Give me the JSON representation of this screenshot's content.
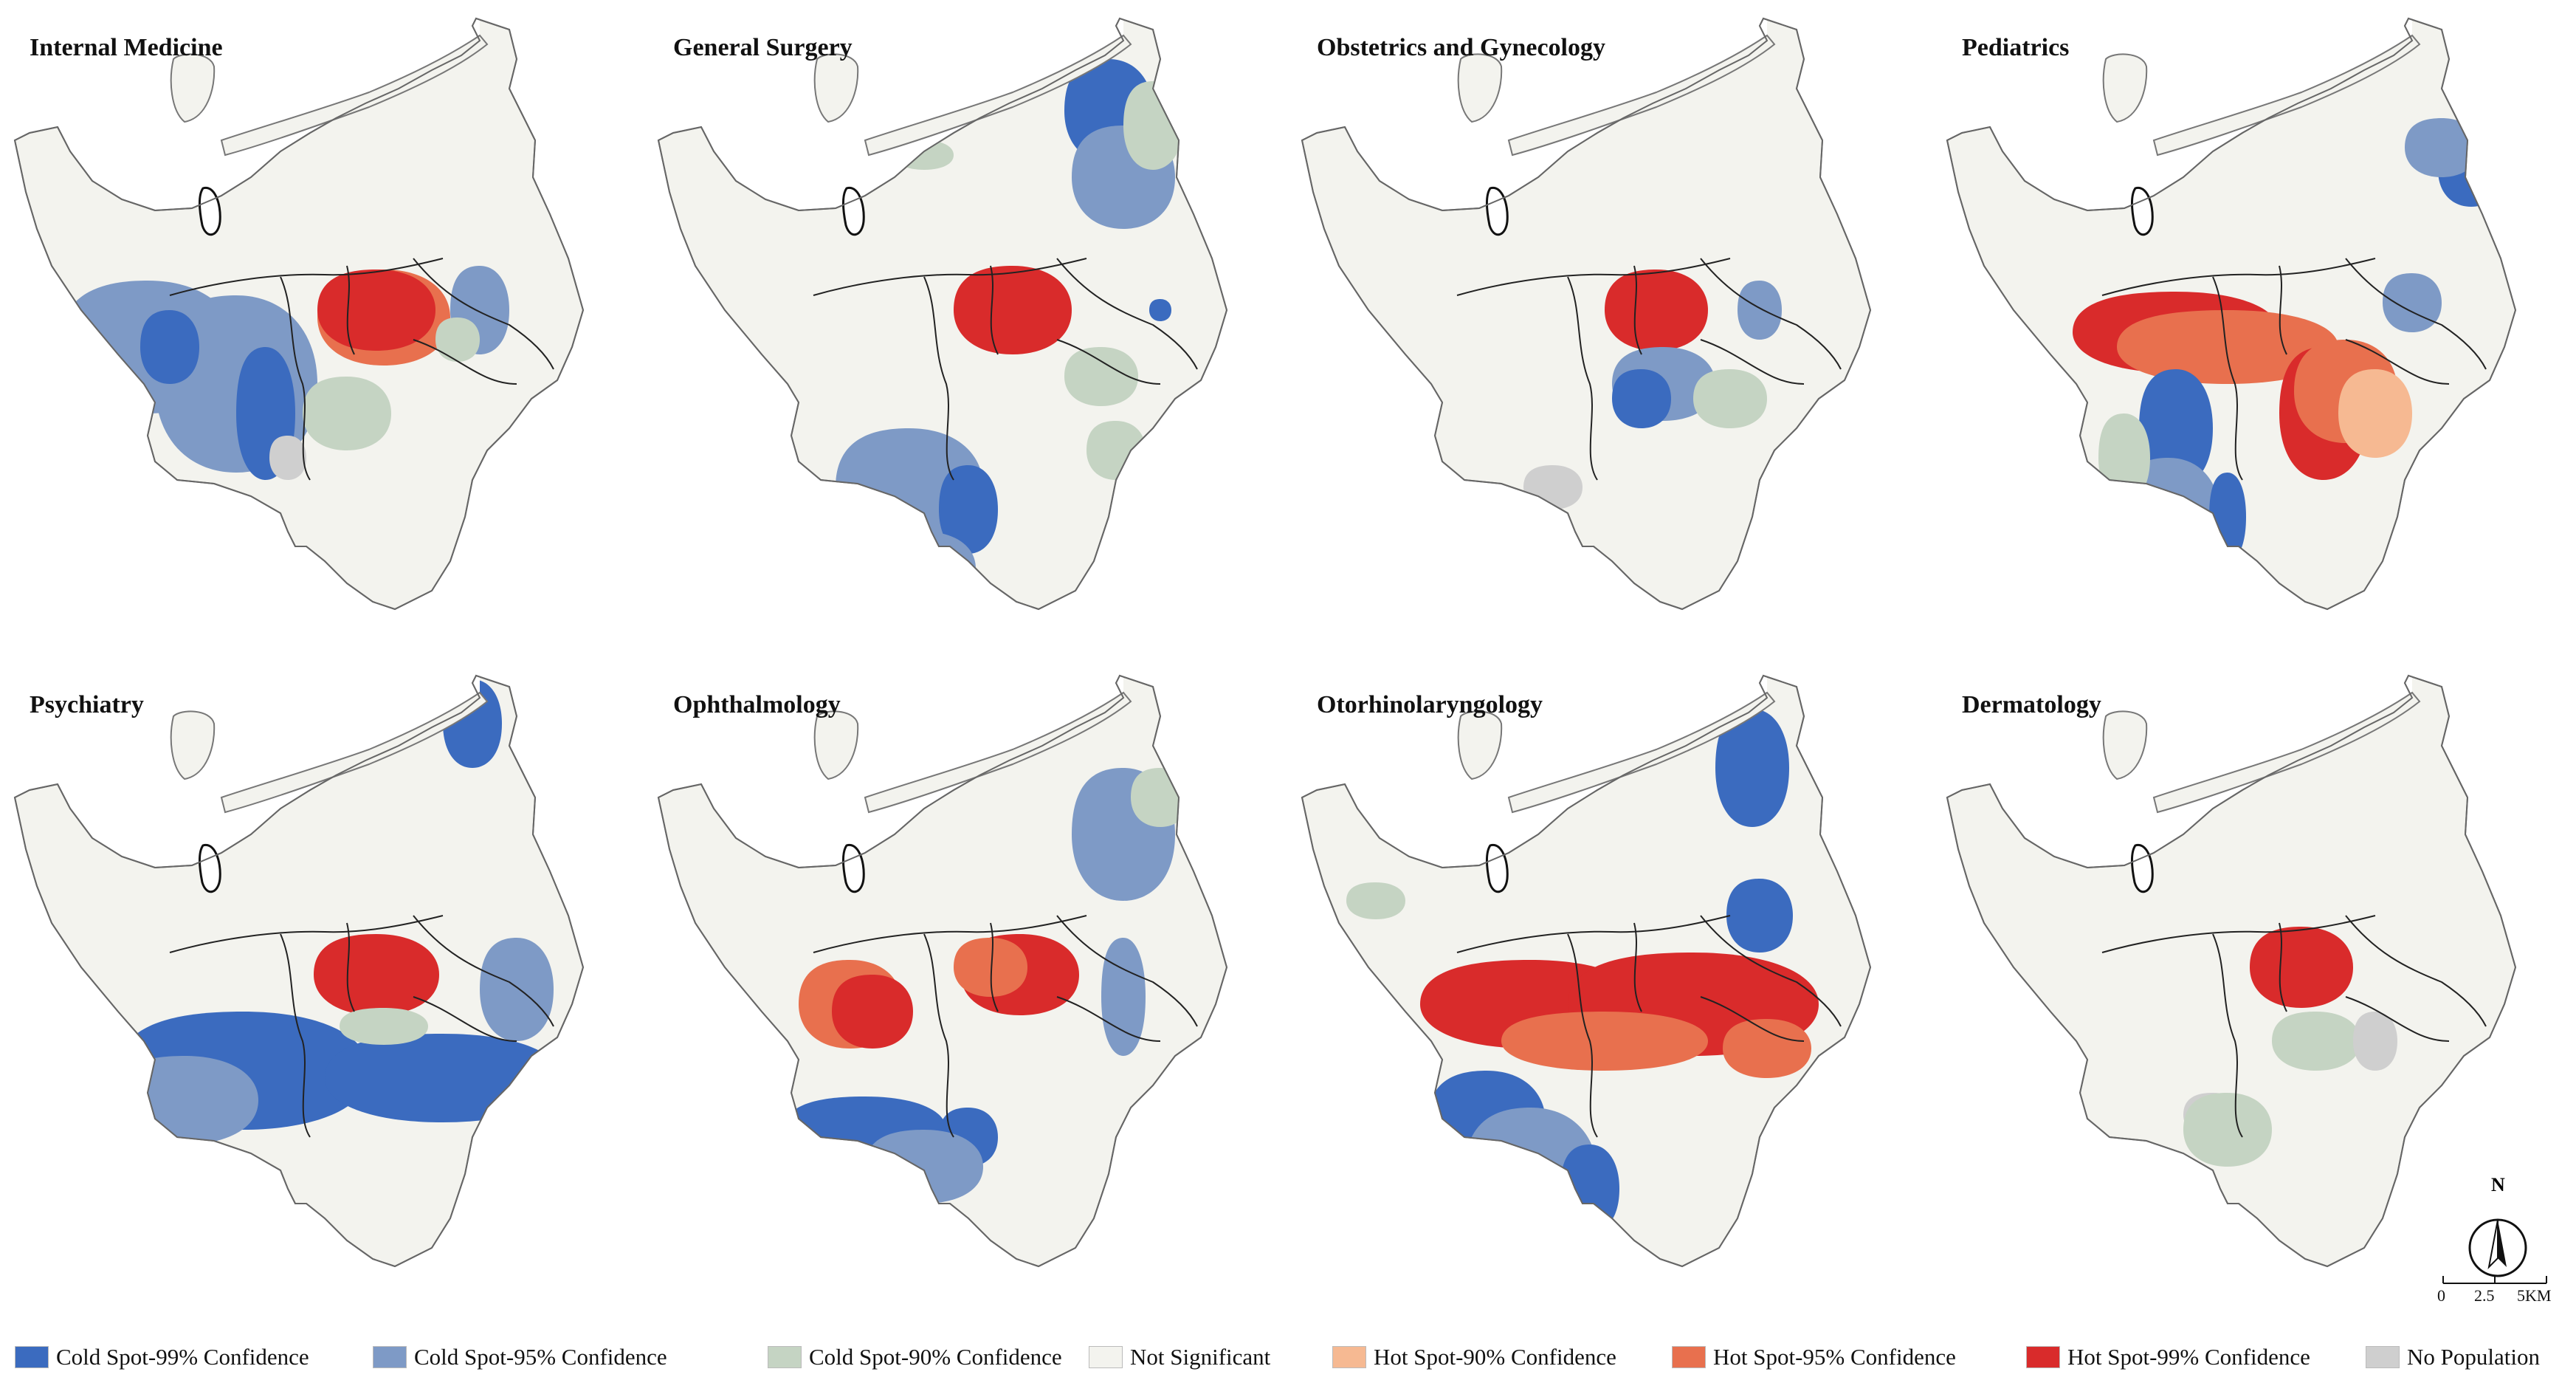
{
  "figure": {
    "panels": [
      {
        "title": "Internal Medicine",
        "pattern": "im"
      },
      {
        "title": "General Surgery",
        "pattern": "gs"
      },
      {
        "title": "Obstetrics and Gynecology",
        "pattern": "og"
      },
      {
        "title": "Pediatrics",
        "pattern": "pd"
      },
      {
        "title": "Psychiatry",
        "pattern": "ps"
      },
      {
        "title": "Ophthalmology",
        "pattern": "op"
      },
      {
        "title": "Otorhinolaryngology",
        "pattern": "ot"
      },
      {
        "title": "Dermatology",
        "pattern": "dm"
      }
    ],
    "north_label": "N",
    "scale": {
      "ticks": [
        "0",
        "2.5",
        "5KM"
      ]
    },
    "legend": [
      {
        "label": "Cold Spot-99% Confidence",
        "color": "#3b6bbf"
      },
      {
        "label": "Cold Spot-95% Confidence",
        "color": "#7e9ac6"
      },
      {
        "label": "Cold Spot-90% Confidence",
        "color": "#c5d4c3"
      },
      {
        "label": "Not Significant",
        "color": "#f3f3ee"
      },
      {
        "label": "Hot Spot-90% Confidence",
        "color": "#f6b992"
      },
      {
        "label": "Hot Spot-95% Confidence",
        "color": "#e8704e"
      },
      {
        "label": "Hot Spot-99% Confidence",
        "color": "#d92b2b"
      },
      {
        "label": "No Population",
        "color": "#cfcfcf"
      }
    ]
  }
}
